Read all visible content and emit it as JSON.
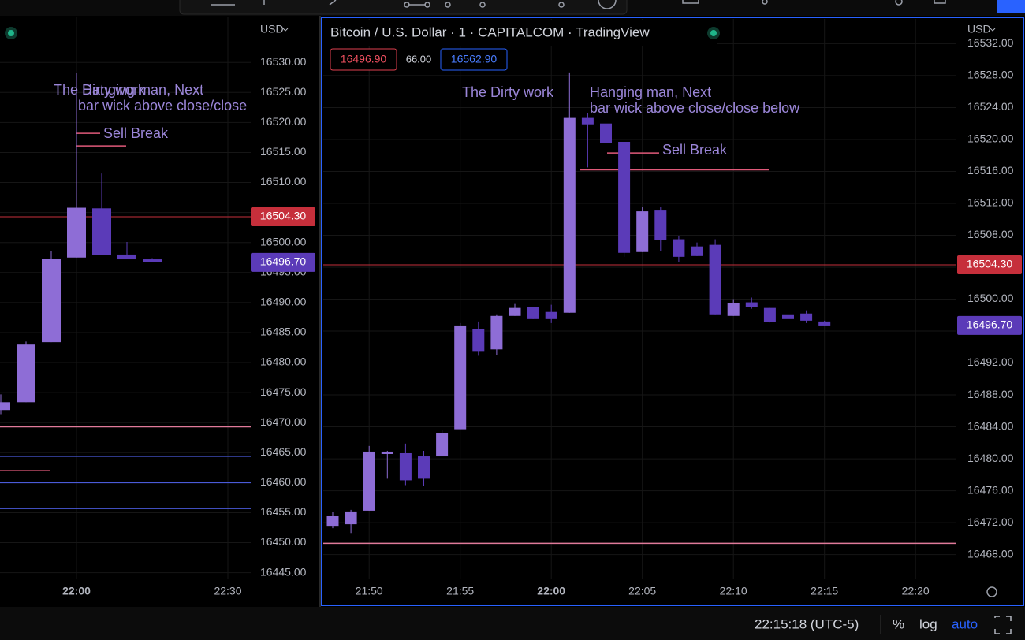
{
  "left_chart": {
    "currency": "USD",
    "up_color": "#8e6dd6",
    "down_color": "#5b3bb8",
    "grid": true,
    "ylim": [
      16443.9,
      16540.4
    ],
    "yticks": [
      {
        "value": 16530,
        "label": "16530.00"
      },
      {
        "value": 16525,
        "label": "16525.00"
      },
      {
        "value": 16520,
        "label": "16520.00"
      },
      {
        "value": 16515,
        "label": "16515.00"
      },
      {
        "value": 16510,
        "label": "16510.00"
      },
      {
        "value": 16505,
        "label": "16505.00"
      },
      {
        "value": 16500,
        "label": "16500.00"
      },
      {
        "value": 16495,
        "label": "16495.00"
      },
      {
        "value": 16490,
        "label": "16490.00"
      },
      {
        "value": 16485,
        "label": "16485.00"
      },
      {
        "value": 16480,
        "label": "16480.00"
      },
      {
        "value": 16475,
        "label": "16475.00"
      },
      {
        "value": 16470,
        "label": "16470.00"
      },
      {
        "value": 16465,
        "label": "16465.00"
      },
      {
        "value": 16460,
        "label": "16460.00"
      },
      {
        "value": 16455,
        "label": "16455.00"
      },
      {
        "value": 16450,
        "label": "16450.00"
      },
      {
        "value": 16445,
        "label": "16445.00"
      }
    ],
    "xticks": [
      "22:00",
      "22:30"
    ],
    "candles": [
      {
        "open": 16472.1,
        "high": 16474.7,
        "low": 16471.4,
        "close": 16473.4
      },
      {
        "open": 16473.4,
        "high": 16483.5,
        "low": 16473.4,
        "close": 16483.0
      },
      {
        "open": 16483.4,
        "high": 16498.6,
        "low": 16483.4,
        "close": 16497.3
      },
      {
        "open": 16497.5,
        "high": 16528.3,
        "low": 16497.5,
        "close": 16505.8
      },
      {
        "open": 16505.7,
        "high": 16511.5,
        "low": 16497.9,
        "close": 16497.9
      },
      {
        "open": 16498.0,
        "high": 16500.1,
        "low": 16497.2,
        "close": 16497.2
      },
      {
        "open": 16497.2,
        "high": 16497.4,
        "low": 16496.7,
        "close": 16496.7
      }
    ],
    "price_labels": [
      {
        "value": 16504.3,
        "label": "16504.30",
        "color": "#c62f3b",
        "line": true
      },
      {
        "value": 16496.7,
        "label": "16496.70",
        "color": "#5b3bb8",
        "line": false
      }
    ],
    "drawings": [
      {
        "value": 16518.2,
        "color": "#e05a7a"
      },
      {
        "value": 16516.1,
        "color": "#e05a7a"
      },
      {
        "value": 16469.3,
        "color": "#e07a9a"
      },
      {
        "value": 16462.0,
        "color": "#e05a7a"
      },
      {
        "value": 16464.4,
        "color": "#4a5ad8"
      },
      {
        "value": 16460.0,
        "color": "#4a5ad8"
      },
      {
        "value": 16455.7,
        "color": "#4a5ad8"
      }
    ],
    "annotations": [
      {
        "lines": [
          "The Dirty work"
        ]
      },
      {
        "lines": [
          "Hanging man, Next",
          "bar wick above close/close below"
        ]
      },
      {
        "lines": [
          "Sell Break"
        ]
      }
    ]
  },
  "right_chart": {
    "title": "Bitcoin / U.S. Dollar · 1 · CAPITALCOM · TradingView",
    "bid": "16496.90",
    "spread": "66.00",
    "ask": "16562.90",
    "currency": "USD",
    "up_color": "#8e6dd6",
    "down_color": "#5b3bb8",
    "grid": true,
    "ylim": [
      16464.9,
      16535.3
    ],
    "yticks": [
      {
        "value": 16532,
        "label": "16532.00"
      },
      {
        "value": 16528,
        "label": "16528.00"
      },
      {
        "value": 16524,
        "label": "16524.00"
      },
      {
        "value": 16520,
        "label": "16520.00"
      },
      {
        "value": 16516,
        "label": "16516.00"
      },
      {
        "value": 16512,
        "label": "16512.00"
      },
      {
        "value": 16508,
        "label": "16508.00"
      },
      {
        "value": 16504,
        "label": "16504.00"
      },
      {
        "value": 16500,
        "label": "16500.00"
      },
      {
        "value": 16496,
        "label": "16496.00"
      },
      {
        "value": 16492,
        "label": "16492.00"
      },
      {
        "value": 16488,
        "label": "16488.00"
      },
      {
        "value": 16484,
        "label": "16484.00"
      },
      {
        "value": 16480,
        "label": "16480.00"
      },
      {
        "value": 16476,
        "label": "16476.00"
      },
      {
        "value": 16472,
        "label": "16472.00"
      },
      {
        "value": 16468,
        "label": "16468.00"
      }
    ],
    "xticks": [
      "21:50",
      "21:55",
      "22:00",
      "22:05",
      "22:10",
      "22:15",
      "22:20"
    ],
    "candles": [
      {
        "open": 16471.6,
        "high": 16473.3,
        "low": 16471.3,
        "close": 16472.8
      },
      {
        "open": 16471.8,
        "high": 16473.6,
        "low": 16470.7,
        "close": 16473.4
      },
      {
        "open": 16473.5,
        "high": 16481.6,
        "low": 16473.5,
        "close": 16480.9
      },
      {
        "open": 16480.6,
        "high": 16481.0,
        "low": 16477.5,
        "close": 16480.9
      },
      {
        "open": 16480.7,
        "high": 16481.9,
        "low": 16476.7,
        "close": 16477.3
      },
      {
        "open": 16480.3,
        "high": 16481.0,
        "low": 16476.6,
        "close": 16477.5
      },
      {
        "open": 16480.3,
        "high": 16483.6,
        "low": 16480.3,
        "close": 16483.2
      },
      {
        "open": 16483.7,
        "high": 16497.0,
        "low": 16483.7,
        "close": 16496.7
      },
      {
        "open": 16496.3,
        "high": 16497.2,
        "low": 16492.9,
        "close": 16493.5
      },
      {
        "open": 16493.7,
        "high": 16498.0,
        "low": 16493.0,
        "close": 16497.9
      },
      {
        "open": 16497.9,
        "high": 16499.4,
        "low": 16497.9,
        "close": 16498.9
      },
      {
        "open": 16499.0,
        "high": 16499.0,
        "low": 16497.5,
        "close": 16497.5
      },
      {
        "open": 16498.4,
        "high": 16499.3,
        "low": 16497.0,
        "close": 16497.5
      },
      {
        "open": 16498.3,
        "high": 16528.4,
        "low": 16498.3,
        "close": 16522.7
      },
      {
        "open": 16522.7,
        "high": 16523.3,
        "low": 16516.5,
        "close": 16521.9
      },
      {
        "open": 16522.0,
        "high": 16523.5,
        "low": 16518.0,
        "close": 16519.6
      },
      {
        "open": 16519.7,
        "high": 16519.7,
        "low": 16505.3,
        "close": 16505.8
      },
      {
        "open": 16505.9,
        "high": 16511.5,
        "low": 16505.9,
        "close": 16511.0
      },
      {
        "open": 16511.1,
        "high": 16511.5,
        "low": 16506.0,
        "close": 16507.4
      },
      {
        "open": 16507.5,
        "high": 16507.9,
        "low": 16504.6,
        "close": 16505.3
      },
      {
        "open": 16506.6,
        "high": 16507.1,
        "low": 16505.4,
        "close": 16505.4
      },
      {
        "open": 16506.8,
        "high": 16507.5,
        "low": 16498.0,
        "close": 16498.0
      },
      {
        "open": 16497.9,
        "high": 16500.0,
        "low": 16497.9,
        "close": 16499.5
      },
      {
        "open": 16499.6,
        "high": 16500.2,
        "low": 16498.8,
        "close": 16499.0
      },
      {
        "open": 16498.9,
        "high": 16499.0,
        "low": 16497.0,
        "close": 16497.1
      },
      {
        "open": 16498.0,
        "high": 16498.6,
        "low": 16497.5,
        "close": 16497.5
      },
      {
        "open": 16498.2,
        "high": 16498.6,
        "low": 16497.0,
        "close": 16497.3
      },
      {
        "open": 16497.2,
        "high": 16497.3,
        "low": 16496.7,
        "close": 16496.7
      }
    ],
    "price_labels": [
      {
        "value": 16504.3,
        "label": "16504.30",
        "color": "#c62f3b",
        "line": true
      },
      {
        "value": 16496.7,
        "label": "16496.70",
        "color": "#5b3bb8",
        "line": false
      }
    ],
    "drawings": [
      {
        "value": 16518.3,
        "color": "#e05a7a"
      },
      {
        "value": 16516.2,
        "color": "#e05a7a"
      },
      {
        "value": 16469.4,
        "color": "#e07a9a"
      }
    ],
    "annotations": [
      {
        "lines": [
          "The Dirty work"
        ]
      },
      {
        "lines": [
          "Hanging man, Next",
          "bar wick above close/close below"
        ]
      },
      {
        "lines": [
          "Sell Break"
        ]
      }
    ]
  },
  "status_bar": {
    "clock": "22:15:18 (UTC-5)",
    "percent": "%",
    "log": "log",
    "auto": "auto"
  }
}
